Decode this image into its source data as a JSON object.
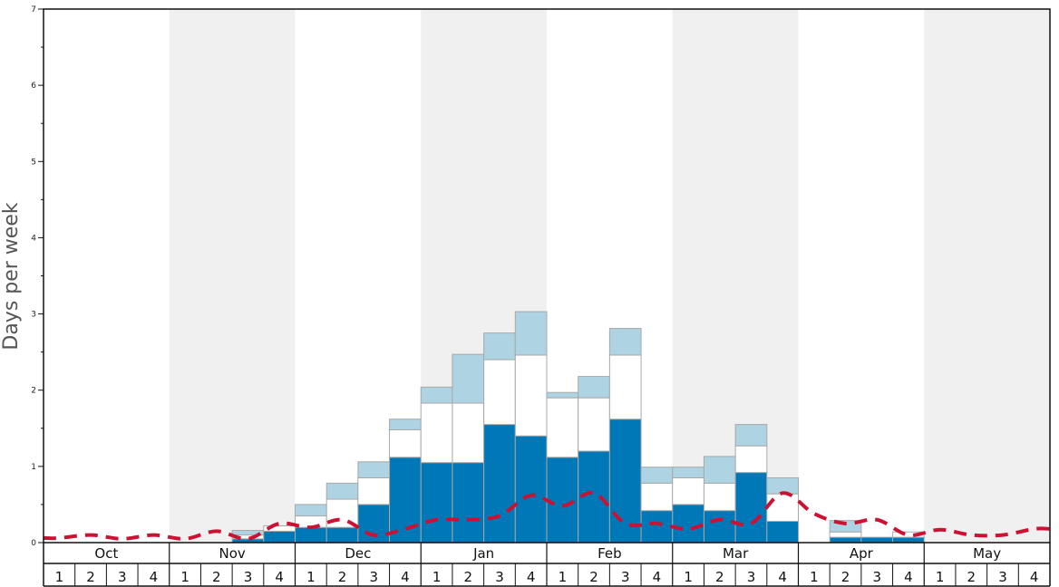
{
  "chart_data": {
    "type": "bar",
    "ylabel": "Days per week",
    "ylim": [
      0,
      7
    ],
    "yticks": [
      0,
      1,
      2,
      3,
      4,
      5,
      6,
      7
    ],
    "months": [
      "Oct",
      "Nov",
      "Dec",
      "Jan",
      "Feb",
      "Mar",
      "Apr",
      "May"
    ],
    "weeks": [
      "1",
      "2",
      "3",
      "4"
    ],
    "categories": [
      "Oct 1",
      "Oct 2",
      "Oct 3",
      "Oct 4",
      "Nov 1",
      "Nov 2",
      "Nov 3",
      "Nov 4",
      "Dec 1",
      "Dec 2",
      "Dec 3",
      "Dec 4",
      "Jan 1",
      "Jan 2",
      "Jan 3",
      "Jan 4",
      "Feb 1",
      "Feb 2",
      "Feb 3",
      "Feb 4",
      "Mar 1",
      "Mar 2",
      "Mar 3",
      "Mar 4",
      "Apr 1",
      "Apr 2",
      "Apr 3",
      "Apr 4",
      "May 1",
      "May 2",
      "May 3",
      "May 4"
    ],
    "series": [
      {
        "color": "#0077b6",
        "values": [
          0,
          0,
          0,
          0,
          0,
          0,
          0.05,
          0.15,
          0.2,
          0.2,
          0.5,
          1.12,
          1.05,
          1.05,
          1.55,
          1.4,
          1.12,
          1.2,
          1.62,
          0.42,
          0.5,
          0.42,
          0.92,
          0.28,
          0,
          0.07,
          0.07,
          0.07,
          0,
          0,
          0,
          0
        ]
      },
      {
        "color": "#ffffff",
        "values": [
          0,
          0,
          0,
          0,
          0,
          0,
          0.05,
          0.07,
          0.15,
          0.37,
          0.35,
          0.36,
          0.78,
          0.78,
          0.85,
          1.06,
          0.78,
          0.7,
          0.84,
          0.36,
          0.35,
          0.36,
          0.35,
          0.36,
          0,
          0.07,
          0,
          0.07,
          0,
          0,
          0,
          0
        ]
      },
      {
        "color": "#aed4e3",
        "values": [
          0,
          0,
          0,
          0,
          0,
          0,
          0.06,
          0,
          0.15,
          0.21,
          0.21,
          0.14,
          0.21,
          0.64,
          0.35,
          0.57,
          0.07,
          0.28,
          0.35,
          0.21,
          0.14,
          0.35,
          0.28,
          0.21,
          0,
          0.15,
          0,
          0,
          0,
          0,
          0,
          0
        ]
      }
    ],
    "line": {
      "color": "#cc1133",
      "values": [
        0.06,
        0.1,
        0.05,
        0.1,
        0.05,
        0.15,
        0.05,
        0.25,
        0.2,
        0.3,
        0.1,
        0.18,
        0.3,
        0.3,
        0.35,
        0.62,
        0.48,
        0.65,
        0.25,
        0.25,
        0.18,
        0.3,
        0.25,
        0.65,
        0.38,
        0.25,
        0.3,
        0.1,
        0.17,
        0.1,
        0.1,
        0.18
      ]
    },
    "shaded_months": [
      "Nov",
      "Jan",
      "Mar",
      "May"
    ],
    "grid": false
  }
}
